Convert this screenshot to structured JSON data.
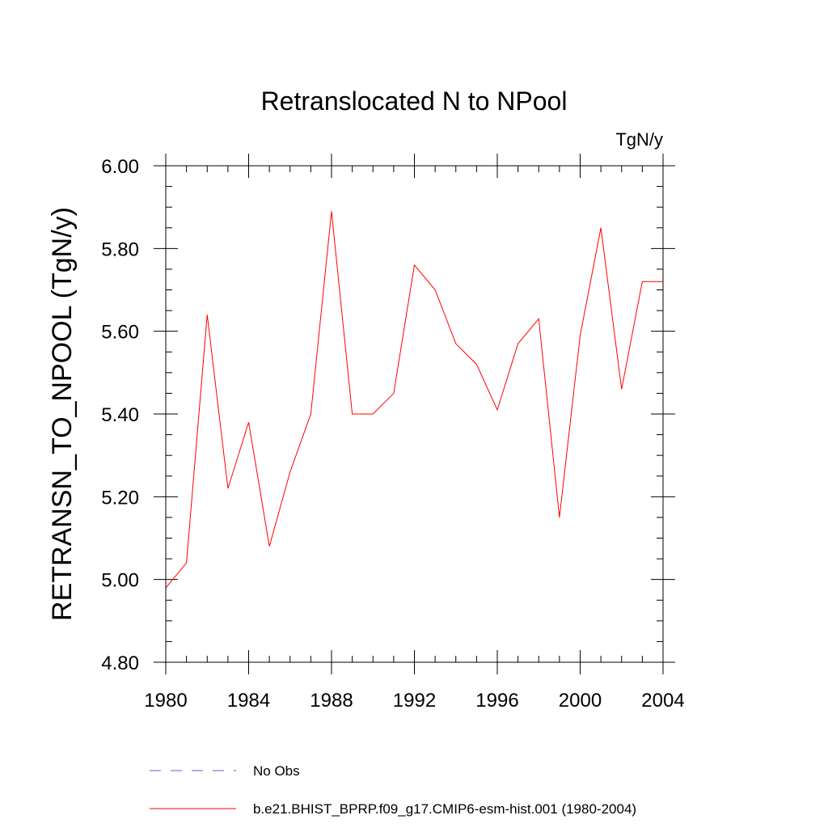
{
  "chart_data": {
    "type": "line",
    "title": "Retranslocated N to NPool",
    "units_label": "TgN/y",
    "ylabel": "RETRANSN_TO_NPOOL  (TgN/y)",
    "xlabel": "",
    "xlim": [
      1980,
      2004
    ],
    "ylim": [
      4.8,
      6.0
    ],
    "x_ticks": [
      1980,
      1984,
      1988,
      1992,
      1996,
      2000,
      2004
    ],
    "x_tick_labels": [
      "1980",
      "1984",
      "1988",
      "1992",
      "1996",
      "2000",
      "2004"
    ],
    "y_ticks": [
      4.8,
      5.0,
      5.2,
      5.4,
      5.6,
      5.8,
      6.0
    ],
    "y_tick_labels": [
      "4.80",
      "5.00",
      "5.20",
      "5.40",
      "5.60",
      "5.80",
      "6.00"
    ],
    "x_minor_step": 1,
    "y_minor_step": 0.05,
    "grid": false,
    "legend_position": "bottom",
    "series": [
      {
        "name": "b.e21.BHIST_BPRP.f09_g17.CMIP6-esm-hist.001 (1980-2004)",
        "color": "#ff0000",
        "style": "solid",
        "x": [
          1980,
          1981,
          1982,
          1983,
          1984,
          1985,
          1986,
          1987,
          1988,
          1989,
          1990,
          1991,
          1992,
          1993,
          1994,
          1995,
          1996,
          1997,
          1998,
          1999,
          2000,
          2001,
          2002,
          2003,
          2004
        ],
        "y": [
          4.98,
          5.04,
          5.64,
          5.22,
          5.38,
          5.08,
          5.26,
          5.4,
          5.89,
          5.4,
          5.4,
          5.45,
          5.76,
          5.7,
          5.57,
          5.52,
          5.41,
          5.57,
          5.63,
          5.15,
          5.59,
          5.85,
          5.46,
          5.72,
          5.72
        ]
      }
    ],
    "legend": [
      {
        "label": "No Obs",
        "color": "#6a5acd",
        "style": "dashed"
      },
      {
        "label": "b.e21.BHIST_BPRP.f09_g17.CMIP6-esm-hist.001 (1980-2004)",
        "color": "#ff0000",
        "style": "solid"
      }
    ]
  }
}
